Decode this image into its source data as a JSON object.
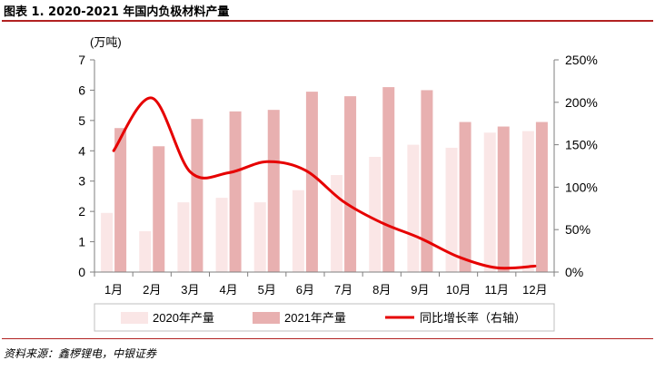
{
  "figure_title": "图表 1. 2020-2021 年国内负极材料产量",
  "source_note": "资料来源：鑫椤锂电，中银证券",
  "colors": {
    "series_2020": "#fae6e6",
    "series_2021": "#e8b0b0",
    "series_yoy": "#e60000",
    "accent_rule": "#b22222"
  },
  "chart_data": {
    "type": "bar",
    "categories": [
      "1月",
      "2月",
      "3月",
      "4月",
      "5月",
      "6月",
      "7月",
      "8月",
      "9月",
      "10月",
      "11月",
      "12月"
    ],
    "left_axis": {
      "unit_label": "(万吨)",
      "ylim": [
        0,
        7
      ],
      "ticks": [
        "0",
        "1",
        "2",
        "3",
        "4",
        "5",
        "6",
        "7"
      ]
    },
    "right_axis": {
      "ylim": [
        0,
        250
      ],
      "ticks": [
        "0%",
        "50%",
        "100%",
        "150%",
        "200%",
        "250%"
      ]
    },
    "series": [
      {
        "name": "2020年产量",
        "type": "bar",
        "axis": "left",
        "values": [
          1.95,
          1.35,
          2.3,
          2.45,
          2.3,
          2.7,
          3.2,
          3.8,
          4.2,
          4.1,
          4.6,
          4.65
        ]
      },
      {
        "name": "2021年产量",
        "type": "bar",
        "axis": "left",
        "values": [
          4.75,
          4.15,
          5.05,
          5.3,
          5.35,
          5.95,
          5.8,
          6.1,
          6.0,
          4.95,
          4.8,
          4.95
        ]
      },
      {
        "name": "同比增长率（右轴）",
        "type": "line",
        "axis": "right",
        "values": [
          143,
          205,
          118,
          117,
          130,
          120,
          83,
          58,
          40,
          18,
          5,
          7
        ]
      }
    ],
    "grid": false,
    "legend": "bottom"
  }
}
